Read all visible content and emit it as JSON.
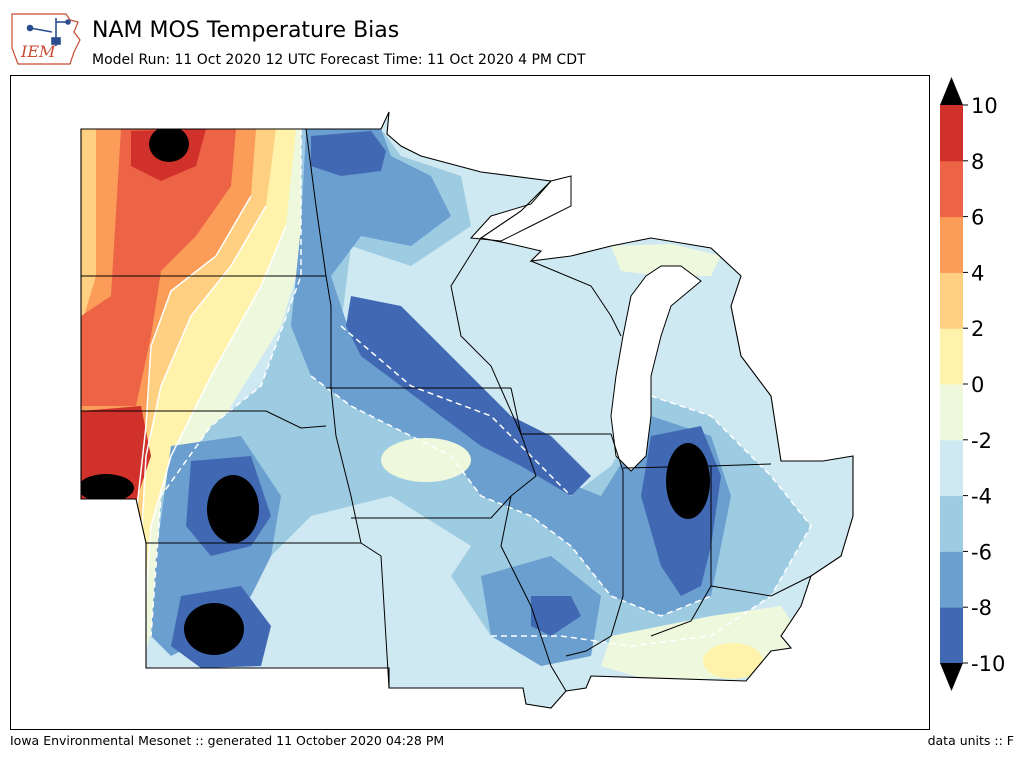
{
  "header": {
    "logo_text": "IEM",
    "title": "NAM MOS Temperature Bias",
    "subtitle": "Model Run: 11 Oct 2020 12 UTC Forecast Time: 11 Oct 2020 4 PM CDT"
  },
  "footer": {
    "credit": "Iowa Environmental Mesonet :: generated 11 October 2020 04:28 PM",
    "units": "data units :: F"
  },
  "colors": {
    "lt_-10": "#000000",
    "-10_-8": "#4169b3",
    "-8_-6": "#6a9fcf",
    "-6_-4": "#9dcbe2",
    "-4_-2": "#cfe9f2",
    "-2_0": "#eef8dd",
    "0_2": "#fff3ac",
    "2_4": "#ffcf82",
    "4_6": "#fb9c59",
    "6_8": "#ed6345",
    "8_10": "#d1312b",
    "gt_10": "#000000"
  },
  "colorbar": {
    "tick_labels": [
      "10",
      "8",
      "6",
      "4",
      "2",
      "0",
      "-2",
      "-4",
      "-6",
      "-8",
      "-10"
    ],
    "levels": [
      -10,
      -8,
      -6,
      -4,
      -2,
      0,
      2,
      4,
      6,
      8,
      10
    ],
    "extend": "both"
  }
}
